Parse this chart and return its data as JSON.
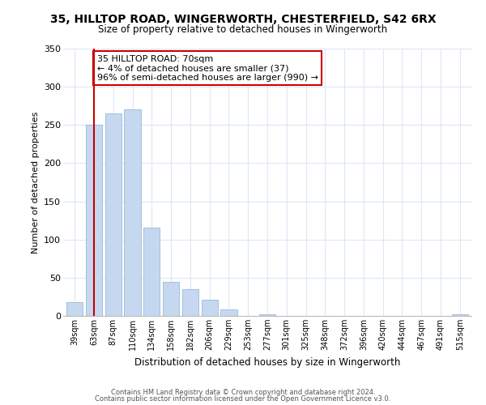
{
  "title": "35, HILLTOP ROAD, WINGERWORTH, CHESTERFIELD, S42 6RX",
  "subtitle": "Size of property relative to detached houses in Wingerworth",
  "xlabel": "Distribution of detached houses by size in Wingerworth",
  "ylabel": "Number of detached properties",
  "bar_labels": [
    "39sqm",
    "63sqm",
    "87sqm",
    "110sqm",
    "134sqm",
    "158sqm",
    "182sqm",
    "206sqm",
    "229sqm",
    "253sqm",
    "277sqm",
    "301sqm",
    "325sqm",
    "348sqm",
    "372sqm",
    "396sqm",
    "420sqm",
    "444sqm",
    "467sqm",
    "491sqm",
    "515sqm"
  ],
  "bar_values": [
    18,
    250,
    265,
    270,
    116,
    45,
    35,
    21,
    9,
    0,
    2,
    0,
    0,
    0,
    0,
    0,
    0,
    0,
    0,
    0,
    2
  ],
  "bar_color": "#c5d8f0",
  "bar_edge_color": "#9ab8d8",
  "vline_x": 1.0,
  "vline_color": "#cc0000",
  "annotation_title": "35 HILLTOP ROAD: 70sqm",
  "annotation_line1": "← 4% of detached houses are smaller (37)",
  "annotation_line2": "96% of semi-detached houses are larger (990) →",
  "annotation_box_color": "#ffffff",
  "annotation_box_edge": "#cc0000",
  "ylim": [
    0,
    350
  ],
  "yticks": [
    0,
    50,
    100,
    150,
    200,
    250,
    300,
    350
  ],
  "footnote1": "Contains HM Land Registry data © Crown copyright and database right 2024.",
  "footnote2": "Contains public sector information licensed under the Open Government Licence v3.0.",
  "bg_color": "#ffffff",
  "grid_color": "#dce8f5"
}
